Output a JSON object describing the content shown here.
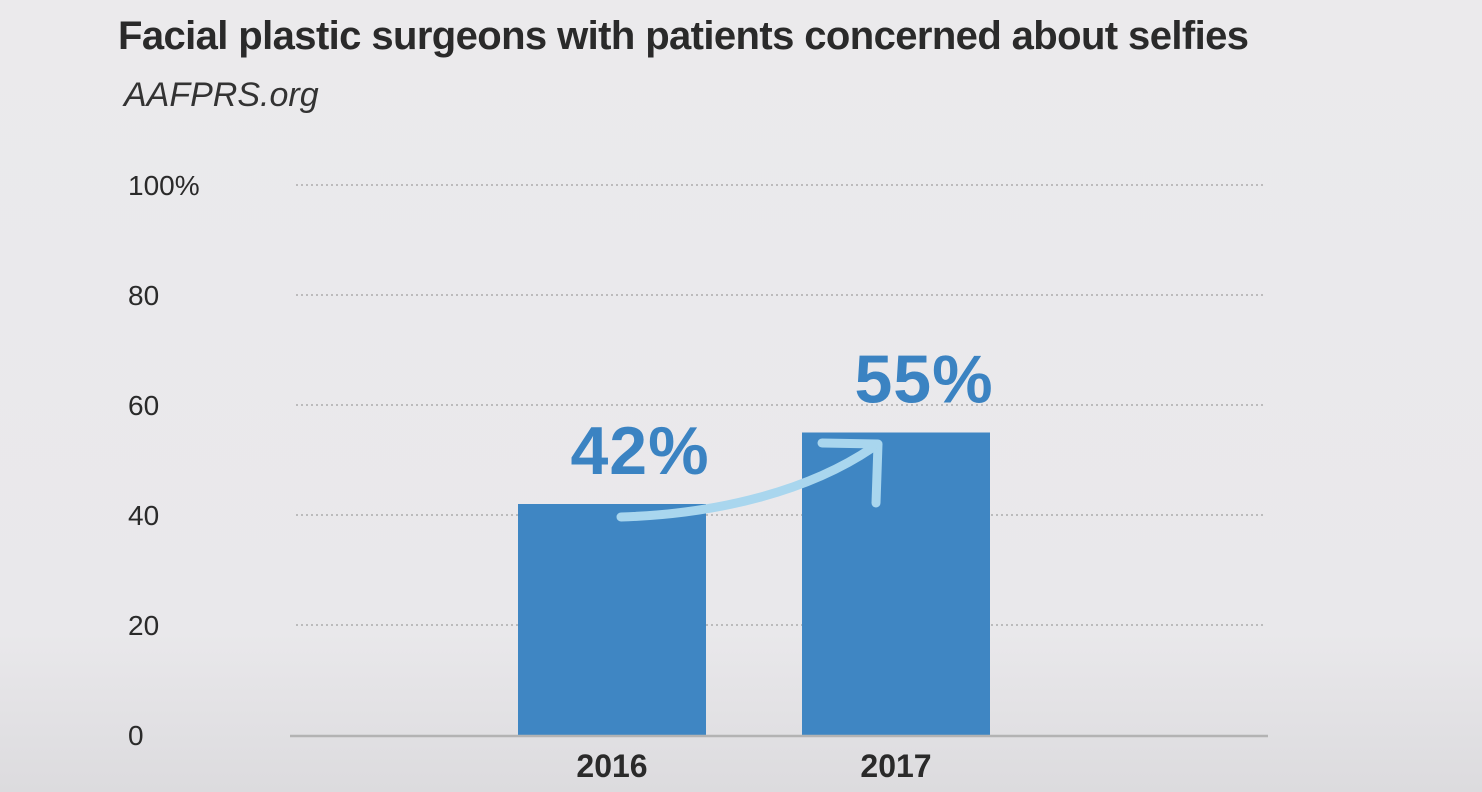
{
  "chart_data": {
    "type": "bar",
    "title": "Facial plastic surgeons with patients concerned about selfies",
    "subtitle": "AAFPRS.org",
    "categories": [
      "2016",
      "2017"
    ],
    "values": [
      42,
      55
    ],
    "data_labels": [
      "42%",
      "55%"
    ],
    "yticks": [
      {
        "value": 0,
        "label": "0"
      },
      {
        "value": 20,
        "label": "20"
      },
      {
        "value": 40,
        "label": "40"
      },
      {
        "value": 60,
        "label": "60"
      },
      {
        "value": 80,
        "label": "80"
      },
      {
        "value": 100,
        "label": "100%"
      }
    ],
    "ylim": [
      0,
      100
    ],
    "grid": true,
    "xlabel": "",
    "ylabel": "",
    "annotation": "curved arrow from 2016 to 2017 showing increase",
    "colors": {
      "bar": "#3f86c3",
      "label": "#3b83c2",
      "arrow": "#a9d6ee",
      "grid": "#a0a0a0",
      "axis": "#b3b3b3",
      "text": "#2a2a2a"
    }
  }
}
